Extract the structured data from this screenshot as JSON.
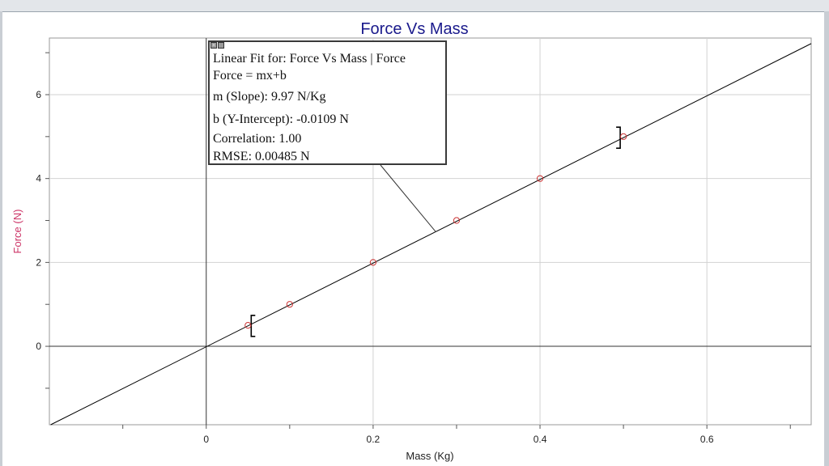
{
  "chart_data": {
    "type": "scatter",
    "title": "Force Vs Mass",
    "xlabel": "Mass (Kg)",
    "ylabel": "Force (N)",
    "xlim": [
      -0.188,
      0.725
    ],
    "ylim": [
      -1.87,
      7.35
    ],
    "x_ticks": [
      0,
      0.2,
      0.4,
      0.6
    ],
    "x_tick_labels": [
      "0",
      "0.2",
      "0.4",
      "0.6"
    ],
    "y_ticks": [
      0,
      2,
      4,
      6
    ],
    "y_tick_labels": [
      "0",
      "2",
      "4",
      "6"
    ],
    "grid": true,
    "legend": "none",
    "series": [
      {
        "marker": "circle",
        "color": "#cc3333",
        "x": [
          0.05,
          0.1,
          0.2,
          0.3,
          0.4,
          0.5
        ],
        "y": [
          0.5,
          1.0,
          2.0,
          3.0,
          4.0,
          5.0
        ]
      }
    ],
    "fit_line": {
      "slope": 9.97,
      "intercept": -0.0109,
      "color": "#000000"
    },
    "fit_range_brackets": [
      0.05,
      0.5
    ],
    "fit_annotation": {
      "line1": "Linear Fit for: Force Vs Mass | Force",
      "line2": "Force = mx+b",
      "line3": "m (Slope): 9.97 N/Kg",
      "line4": "b (Y-Intercept): -0.0109 N",
      "line5": "Correlation: 1.00",
      "line6": "RMSE: 0.00485 N",
      "pointer_x": 0.275
    }
  }
}
